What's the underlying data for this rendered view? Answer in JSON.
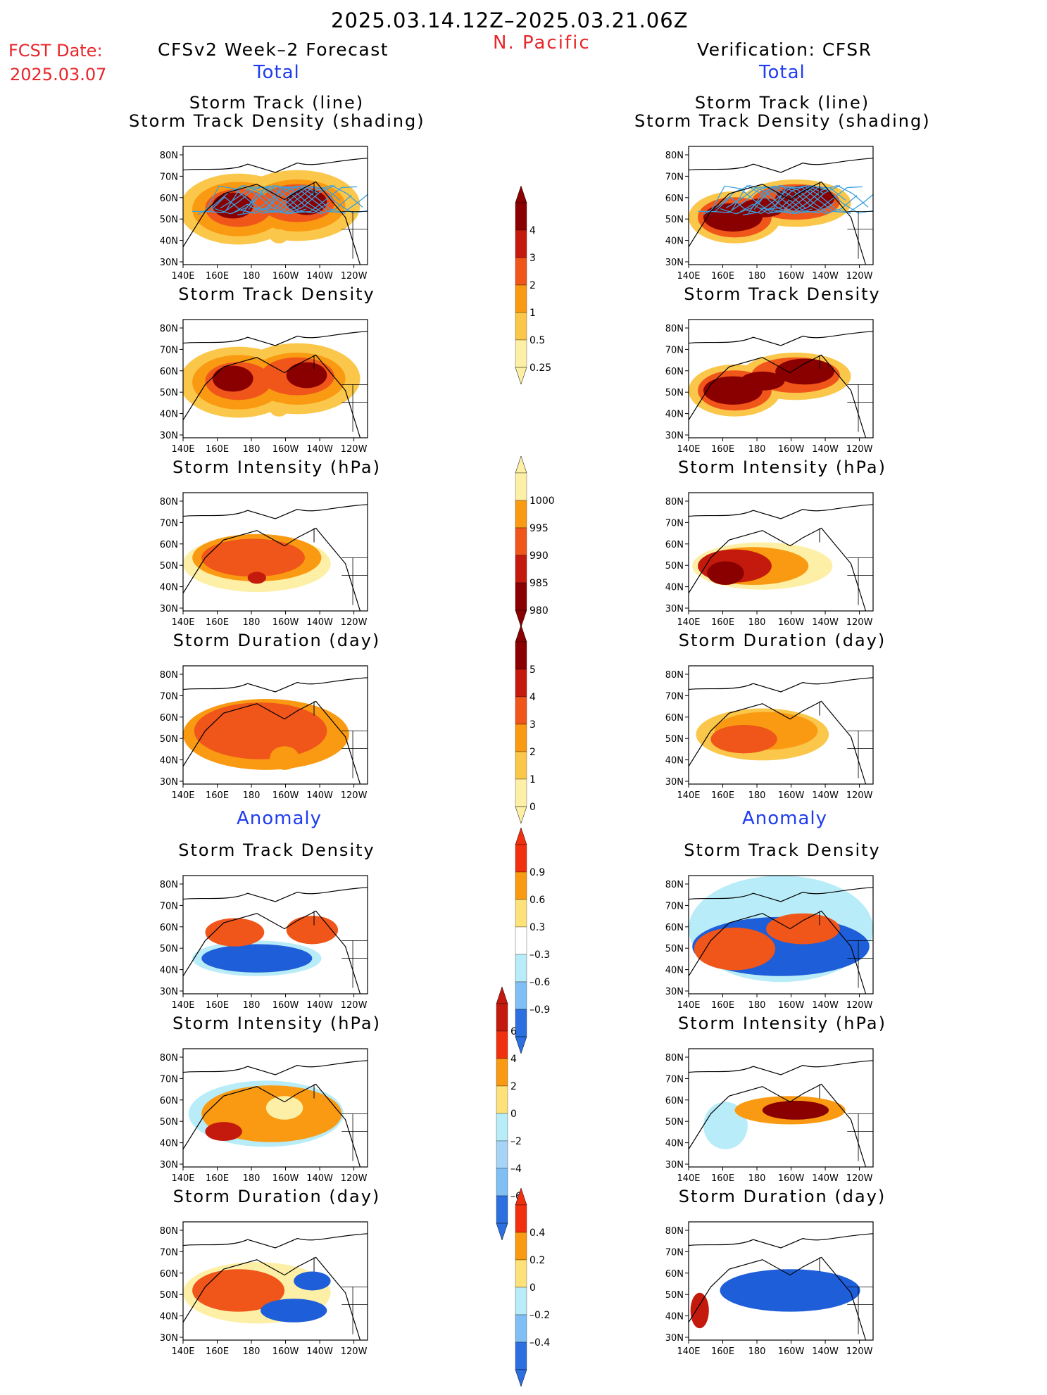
{
  "header": {
    "date_range": "2025.03.14.12Z–2025.03.21.06Z",
    "fcst_label": "FCST Date:",
    "fcst_date": "2025.03.07",
    "region": "N. Pacific"
  },
  "columns": {
    "left": {
      "title": "CFSv2 Week–2 Forecast"
    },
    "right": {
      "title": "Verification: CFSR"
    }
  },
  "sections": {
    "total": "Total",
    "anomaly": "Anomaly"
  },
  "panel_titles": {
    "track_line": "Storm Track (line)",
    "track_shading": "Storm Track Density (shading)",
    "density": "Storm Track Density",
    "intensity": "Storm Intensity (hPa)",
    "duration": "Storm Duration (day)"
  },
  "axes": {
    "lat_labels": [
      "80N",
      "70N",
      "60N",
      "50N",
      "40N",
      "30N"
    ],
    "lon_labels": [
      "140E",
      "160E",
      "180",
      "160W",
      "140W",
      "120W"
    ]
  },
  "colorbars": {
    "density_total": {
      "labels": [
        "4",
        "3",
        "2",
        "1",
        "0.5",
        "0.25"
      ],
      "colors": [
        "#8a0000",
        "#c41a0d",
        "#f0551a",
        "#f99a12",
        "#fbc74a",
        "#fdf0a6"
      ]
    },
    "intensity_total": {
      "labels": [
        "1000",
        "995",
        "990",
        "985",
        "980"
      ],
      "colors": [
        "#fdf0a6",
        "#f99a12",
        "#f0551a",
        "#c41a0d",
        "#8a0000"
      ]
    },
    "duration_total": {
      "labels": [
        "5",
        "4",
        "3",
        "2",
        "1",
        "0"
      ],
      "colors": [
        "#8a0000",
        "#c41a0d",
        "#f0551a",
        "#f99a12",
        "#fbc74a",
        "#fdf0a6"
      ]
    },
    "density_anom": {
      "labels": [
        "0.9",
        "0.6",
        "0.3",
        "–0.3",
        "–0.6",
        "–0.9"
      ],
      "colors": [
        "#f0300f",
        "#f99a12",
        "#fde27a",
        "#ffffff",
        "#b8ecf8",
        "#7fbff4",
        "#2b6fe0"
      ]
    },
    "intensity_anom": {
      "labels": [
        "6",
        "4",
        "2",
        "0",
        "–2",
        "–4",
        "–6"
      ],
      "colors": [
        "#c41a0d",
        "#f0300f",
        "#f99a12",
        "#fde27a",
        "#b8ecf8",
        "#a7d3f6",
        "#7fbff4",
        "#2b6fe0"
      ]
    },
    "duration_anom": {
      "labels": [
        "0.4",
        "0.2",
        "0",
        "–0.2",
        "–0.4"
      ],
      "colors": [
        "#f0300f",
        "#f99a12",
        "#fde27a",
        "#b8ecf8",
        "#7fbff4",
        "#2b6fe0"
      ]
    }
  },
  "palette": {
    "dark_red": "#8a0000",
    "red": "#c41a0d",
    "orange_red": "#f0551a",
    "orange": "#f99a12",
    "yellow": "#fbc74a",
    "pale": "#fdf0a6",
    "blue": "#1e5ed8",
    "light_blue": "#b8ecf8",
    "track_line": "#3aa0e0"
  }
}
